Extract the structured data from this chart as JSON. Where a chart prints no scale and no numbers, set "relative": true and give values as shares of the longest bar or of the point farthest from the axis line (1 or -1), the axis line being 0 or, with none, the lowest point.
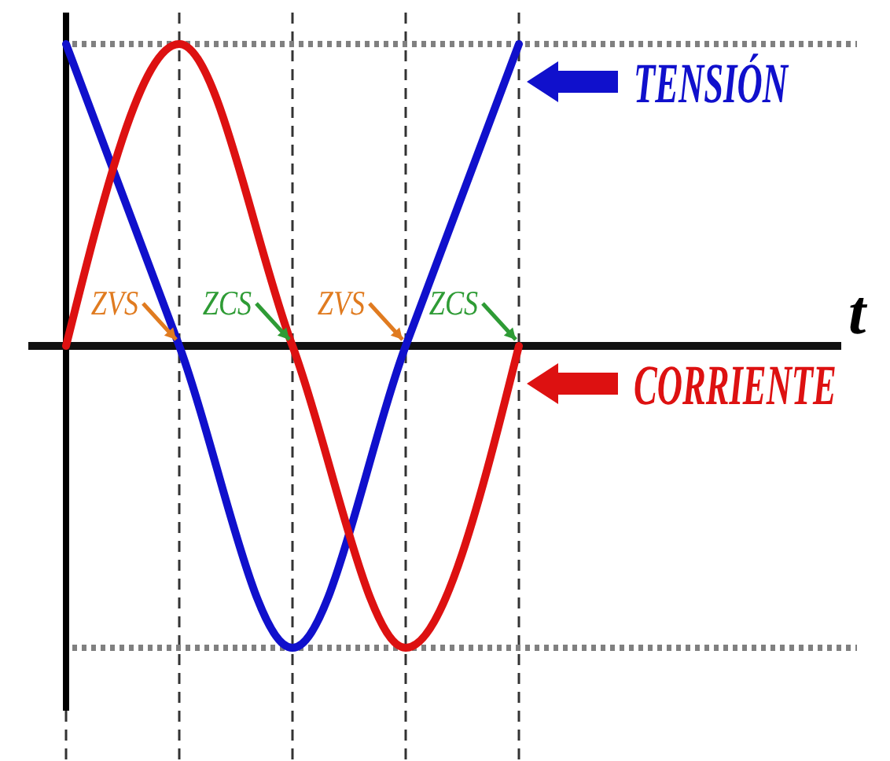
{
  "chart_data": {
    "type": "line",
    "relative": true,
    "xlabel": "t",
    "categories": [
      null,
      null,
      null,
      null,
      null
    ],
    "series": [
      {
        "name": "TENSIÓN",
        "color": "#1010cc",
        "values": [
          1,
          0,
          -1,
          0,
          1
        ]
      },
      {
        "name": "CORRIENTE",
        "color": "#dd1111",
        "values": [
          0,
          1,
          0,
          -1,
          0
        ]
      }
    ],
    "grid": "x",
    "line_style": "solid",
    "legend": "right",
    "ref_lines": [
      {
        "axis": "y",
        "value": 1,
        "color": "#808080",
        "line_style": "dotted"
      },
      {
        "axis": "y",
        "value": -1,
        "color": "#808080",
        "line_style": "dotted"
      }
    ],
    "annotations": [
      "ZVS",
      "ZCS",
      "ZVS",
      "ZCS"
    ]
  }
}
